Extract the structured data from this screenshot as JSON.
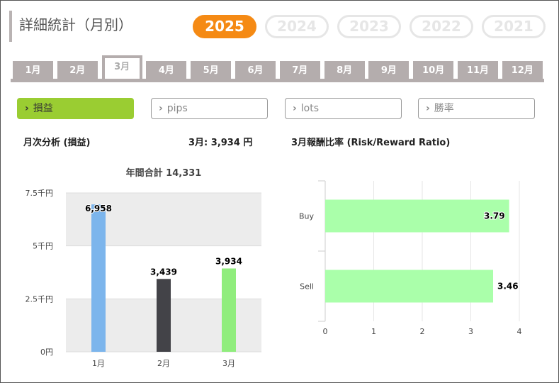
{
  "title": "詳細統計（月別）",
  "years": [
    {
      "label": "2025",
      "active": true
    },
    {
      "label": "2024",
      "active": false
    },
    {
      "label": "2023",
      "active": false
    },
    {
      "label": "2022",
      "active": false
    },
    {
      "label": "2021",
      "active": false
    }
  ],
  "months": [
    {
      "label": "1月",
      "active": false
    },
    {
      "label": "2月",
      "active": false
    },
    {
      "label": "3月",
      "active": true
    },
    {
      "label": "4月",
      "active": false
    },
    {
      "label": "5月",
      "active": false
    },
    {
      "label": "6月",
      "active": false
    },
    {
      "label": "7月",
      "active": false
    },
    {
      "label": "8月",
      "active": false
    },
    {
      "label": "9月",
      "active": false
    },
    {
      "label": "10月",
      "active": false
    },
    {
      "label": "11月",
      "active": false
    },
    {
      "label": "12月",
      "active": false
    }
  ],
  "metrics": [
    {
      "label": "損益",
      "active": true
    },
    {
      "label": "pips",
      "active": false
    },
    {
      "label": "lots",
      "active": false
    },
    {
      "label": "勝率",
      "active": false
    }
  ],
  "chevron_icon": "chevron-right-icon",
  "left_panel": {
    "title": "月次分析 (損益)",
    "summary": "3月: 3,934 円"
  },
  "right_panel": {
    "title": "3月報酬比率 (Risk/Reward Ratio)"
  },
  "colors": {
    "accent_orange": "#f58a14",
    "accent_green": "#9acd32",
    "tab_gray": "#b4adad",
    "bar_jan": "#7cb5ec",
    "bar_feb": "#434348",
    "bar_mar": "#90ed7d",
    "hbar": "#aaffaa"
  },
  "chart_data": [
    {
      "type": "bar",
      "title": "年間合計 14,331",
      "categories": [
        "1月",
        "2月",
        "3月"
      ],
      "values": [
        6958,
        3439,
        3934
      ],
      "value_labels": [
        "6,958",
        "3,439",
        "3,934"
      ],
      "ylim": [
        0,
        7500
      ],
      "yticks": [
        0,
        2500,
        5000,
        7500
      ],
      "ytick_labels": [
        "0円",
        "2.5千円",
        "5千円",
        "7.5千円"
      ],
      "grid": "alternating bands",
      "legend": "none"
    },
    {
      "type": "bar",
      "orientation": "horizontal",
      "categories": [
        "Buy",
        "Sell"
      ],
      "values": [
        3.79,
        3.46
      ],
      "value_labels": [
        "3.79",
        "3.46"
      ],
      "xlim": [
        0,
        4
      ],
      "xticks": [
        0,
        1,
        2,
        3,
        4
      ],
      "grid": "vertical lines",
      "legend": "none"
    }
  ]
}
